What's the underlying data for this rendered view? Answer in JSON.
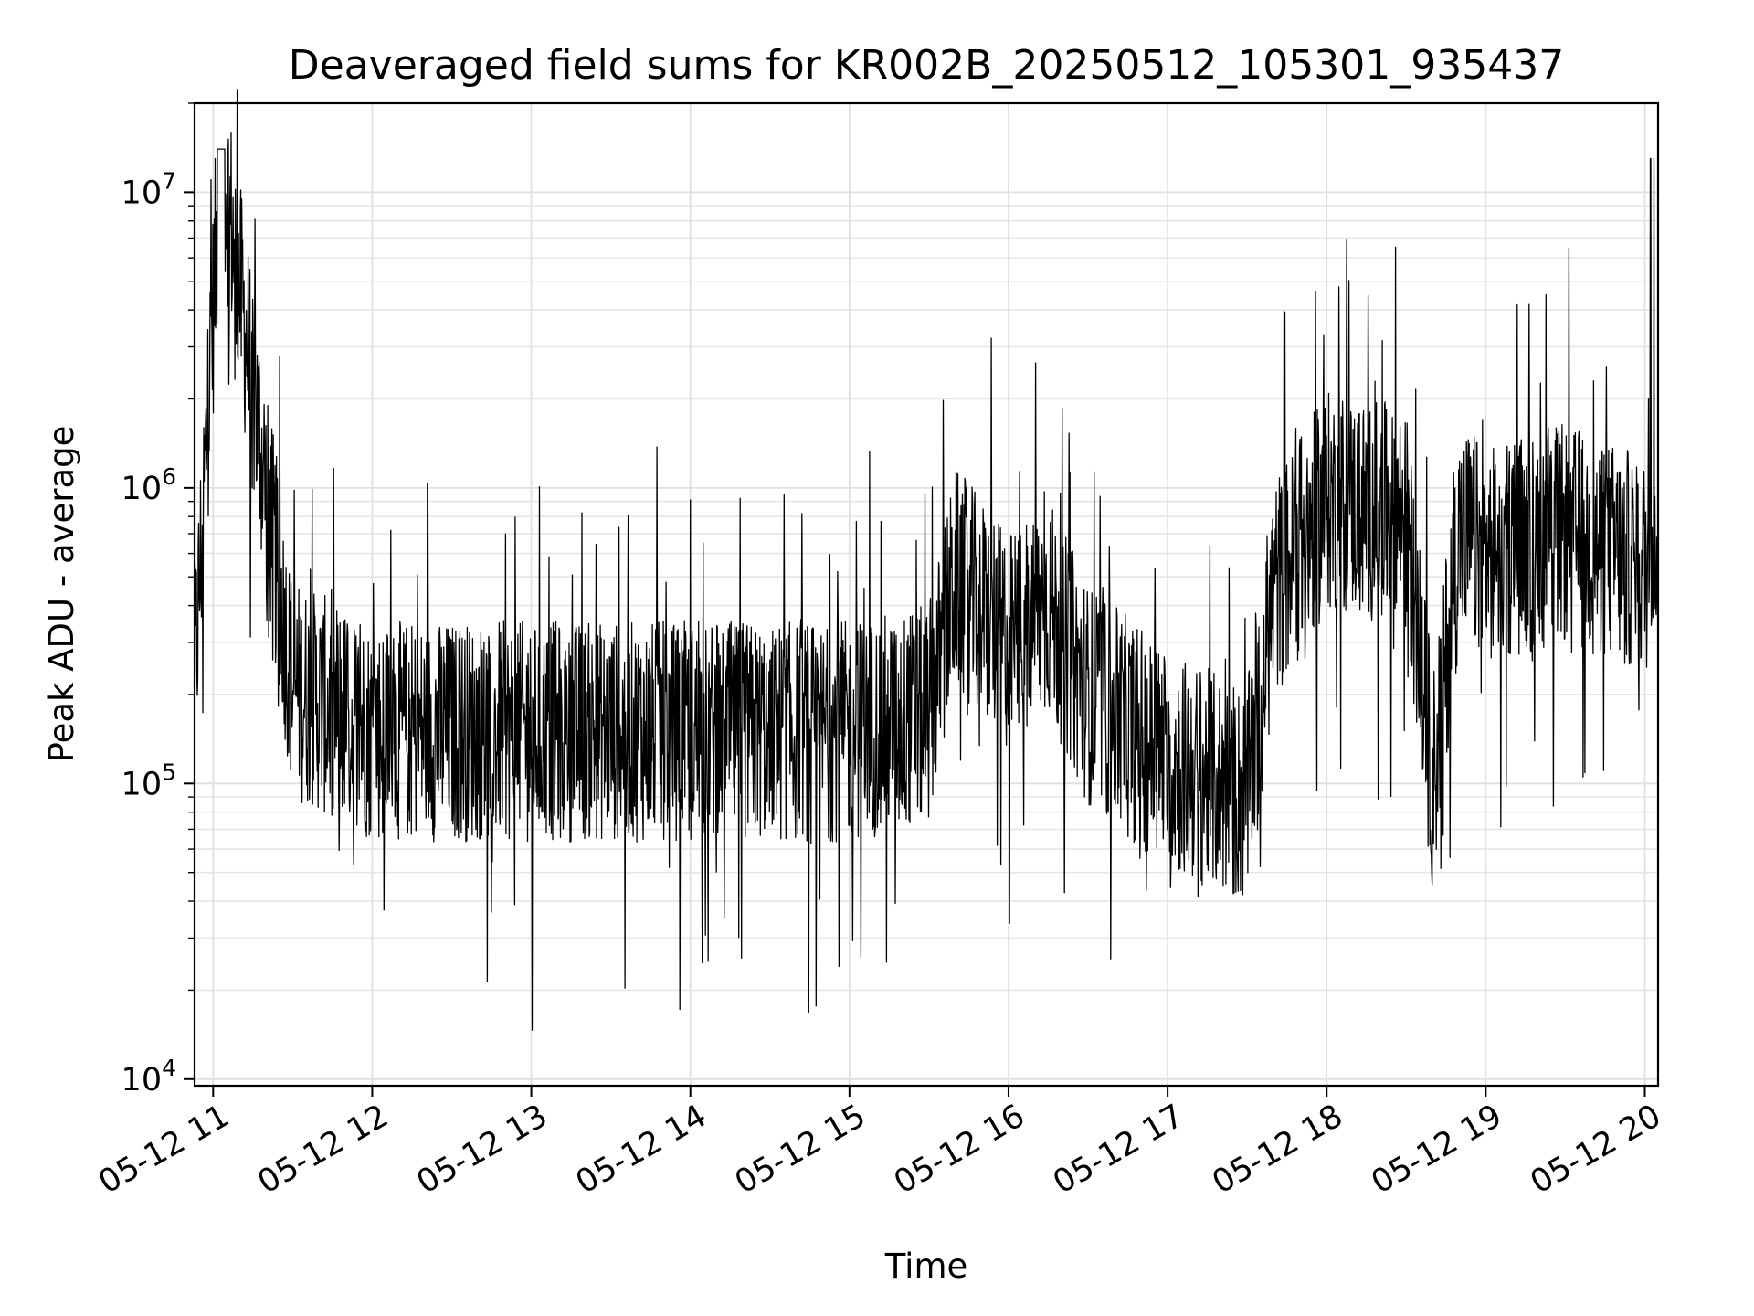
{
  "chart_data": {
    "type": "line",
    "title": "Deaveraged field sums for KR002B_20250512_105301_935437",
    "xlabel": "Time",
    "ylabel": "Peak ADU - average",
    "x_range": [
      "05-12 10:53",
      "05-12 20:05"
    ],
    "y_scale": "log",
    "ylim": [
      9500,
      20000000
    ],
    "y_ticks": [
      {
        "base": "10",
        "exp": "4",
        "value": 10000
      },
      {
        "base": "10",
        "exp": "5",
        "value": 100000
      },
      {
        "base": "10",
        "exp": "6",
        "value": 1000000
      },
      {
        "base": "10",
        "exp": "7",
        "value": 10000000
      }
    ],
    "x_ticks": [
      "05-12 11",
      "05-12 12",
      "05-12 13",
      "05-12 14",
      "05-12 15",
      "05-12 16",
      "05-12 17",
      "05-12 18",
      "05-12 19",
      "05-12 20"
    ],
    "grid": true,
    "line_color": "#000000",
    "series": [
      {
        "x": [
          "05-12 10:53",
          "05-12 11:03",
          "05-12 11:30",
          "05-12 12:00",
          "05-12 13:00",
          "05-12 14:00",
          "05-12 15:00",
          "05-12 15:30",
          "05-12 15:40",
          "05-12 16:00",
          "05-12 16:15",
          "05-12 16:30",
          "05-12 17:00",
          "05-12 17:30",
          "05-12 17:40",
          "05-12 18:00",
          "05-12 18:30",
          "05-12 18:40",
          "05-12 18:50",
          "05-12 19:00",
          "05-12 19:30",
          "05-12 20:00",
          "05-12 20:05"
        ],
        "y": [
          220000,
          14000000,
          210000,
          150000,
          150000,
          150000,
          150000,
          170000,
          500000,
          300000,
          400000,
          200000,
          120000,
          90000,
          450000,
          900000,
          800000,
          100000,
          700000,
          600000,
          700000,
          550000,
          600000
        ]
      }
    ]
  }
}
